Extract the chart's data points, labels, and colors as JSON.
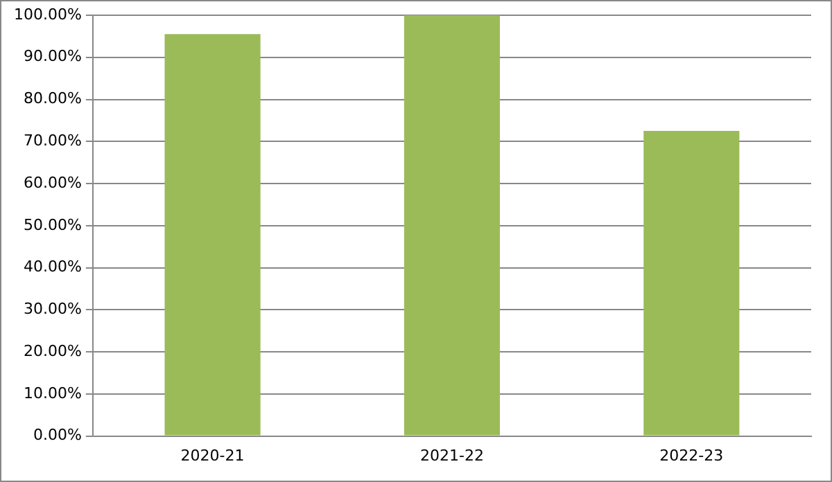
{
  "chart_data": {
    "type": "bar",
    "categories": [
      "2020-21",
      "2021-22",
      "2022-23"
    ],
    "values": [
      95.5,
      100,
      72.5
    ],
    "color": "#9bbb59",
    "ylim": [
      0,
      100
    ],
    "yticks": [
      {
        "value": 0,
        "label": "0.00%"
      },
      {
        "value": 10,
        "label": "10.00%"
      },
      {
        "value": 20,
        "label": "20.00%"
      },
      {
        "value": 30,
        "label": "30.00%"
      },
      {
        "value": 40,
        "label": "40.00%"
      },
      {
        "value": 50,
        "label": "50.00%"
      },
      {
        "value": 60,
        "label": "60.00%"
      },
      {
        "value": 70,
        "label": "70.00%"
      },
      {
        "value": 80,
        "label": "80.00%"
      },
      {
        "value": 90,
        "label": "90.00%"
      },
      {
        "value": 100,
        "label": "100.00%"
      }
    ],
    "grid": "y",
    "legend": false
  }
}
